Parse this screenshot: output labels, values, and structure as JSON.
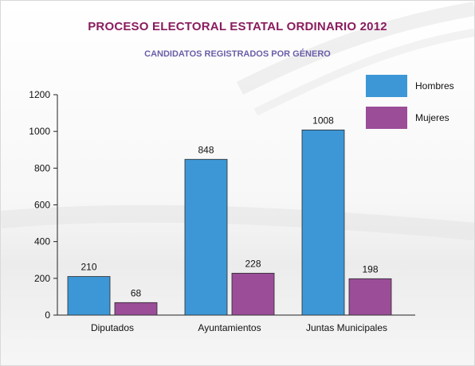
{
  "title": "PROCESO ELECTORAL ESTATAL ORDINARIO 2012",
  "subtitle": "CANDIDATOS REGISTRADOS POR GÉNERO",
  "colors": {
    "hombres": "#3d97d6",
    "mujeres": "#9b4d98",
    "title": "#8a1c5e",
    "subtitle": "#6b5ea8"
  },
  "chart_data": {
    "type": "bar",
    "title": "PROCESO ELECTORAL ESTATAL ORDINARIO 2012",
    "subtitle": "CANDIDATOS REGISTRADOS POR GÉNERO",
    "categories": [
      "Diputados",
      "Ayuntamientos",
      "Juntas Municipales"
    ],
    "series": [
      {
        "name": "Hombres",
        "values": [
          210,
          848,
          1008
        ]
      },
      {
        "name": "Mujeres",
        "values": [
          68,
          228,
          198
        ]
      }
    ],
    "ylim": [
      0,
      1200
    ],
    "yticks": [
      0,
      200,
      400,
      600,
      800,
      1000,
      1200
    ],
    "xlabel": "",
    "ylabel": "",
    "grid": false,
    "legend": "top-right"
  }
}
